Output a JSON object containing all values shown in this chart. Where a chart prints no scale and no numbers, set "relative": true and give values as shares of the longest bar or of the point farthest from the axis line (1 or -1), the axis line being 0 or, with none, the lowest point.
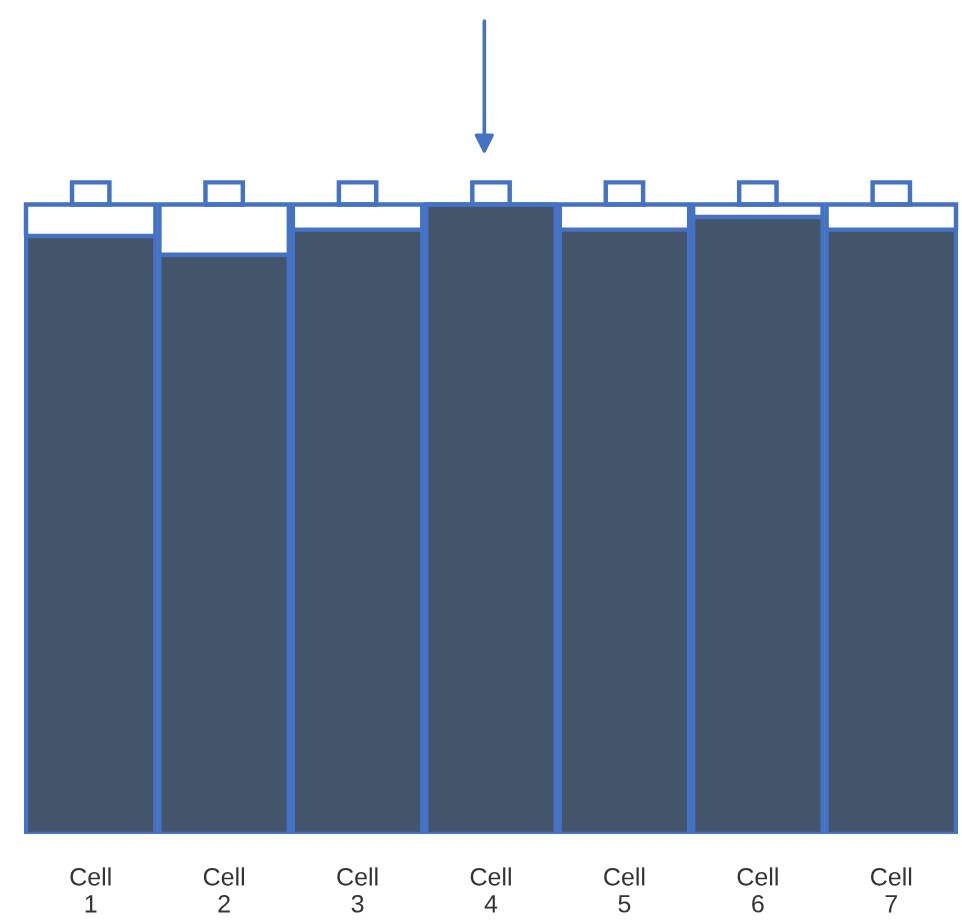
{
  "chart_data": {
    "type": "bar",
    "relative": true,
    "categories": [
      "Cell\n1",
      "Cell\n2",
      "Cell\n3",
      "Cell\n4",
      "Cell\n5",
      "Cell\n6",
      "Cell\n7"
    ],
    "values": [
      0.95,
      0.92,
      0.96,
      1,
      0.96,
      0.98,
      0.96
    ],
    "color": "#44546a",
    "grid": false,
    "legend": false
  }
}
